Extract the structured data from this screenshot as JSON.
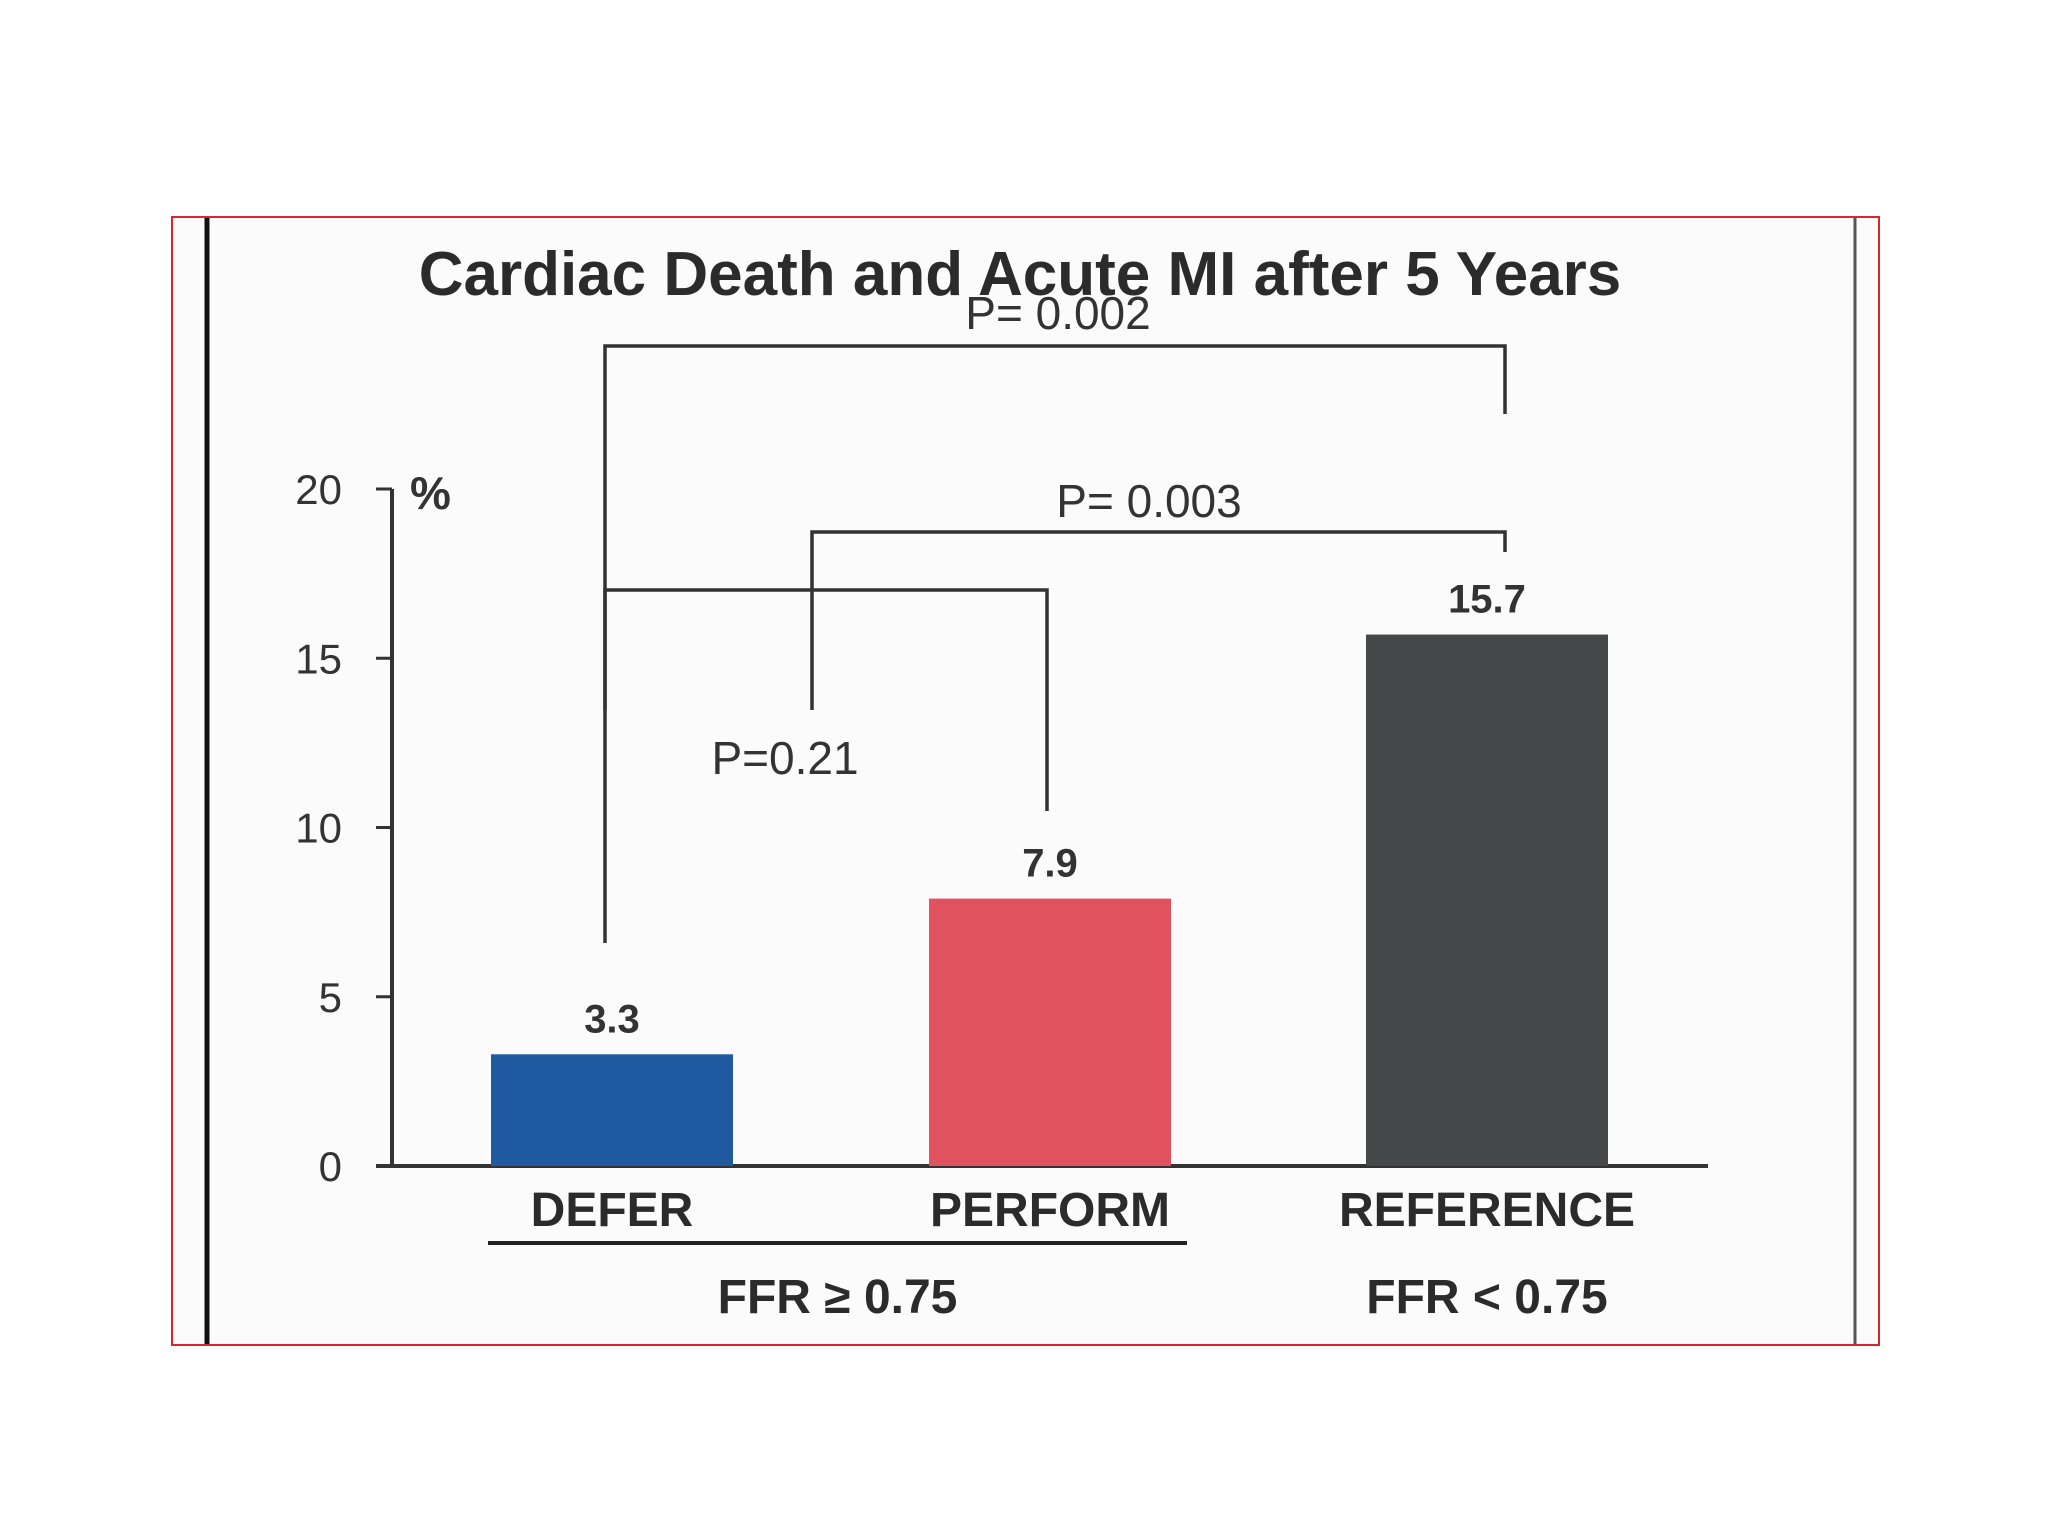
{
  "chart_data": {
    "type": "bar",
    "title": "Cardiac Death and Acute MI after 5 Years",
    "ylabel": "%",
    "ylim": [
      0,
      20
    ],
    "yticks": [
      0,
      5,
      10,
      15,
      20
    ],
    "categories": [
      "DEFER",
      "PERFORM",
      "REFERENCE"
    ],
    "values": [
      3.3,
      7.9,
      15.7
    ],
    "value_labels": [
      "3.3",
      "7.9",
      "15.7"
    ],
    "colors": [
      "#1f5aa0",
      "#e0535e",
      "#454848"
    ],
    "groups": [
      {
        "label": "FFR ≥ 0.75",
        "categories": [
          "DEFER",
          "PERFORM"
        ]
      },
      {
        "label": "FFR < 0.75",
        "categories": [
          "REFERENCE"
        ]
      }
    ],
    "comparisons": [
      {
        "label": "P= 0.002",
        "from": "DEFER",
        "to": "REFERENCE"
      },
      {
        "label": "P= 0.003",
        "from": "PERFORM",
        "to": "REFERENCE"
      },
      {
        "label": "P=0.21",
        "from": "DEFER",
        "to": "PERFORM"
      }
    ],
    "grid": false,
    "legend": "none"
  }
}
